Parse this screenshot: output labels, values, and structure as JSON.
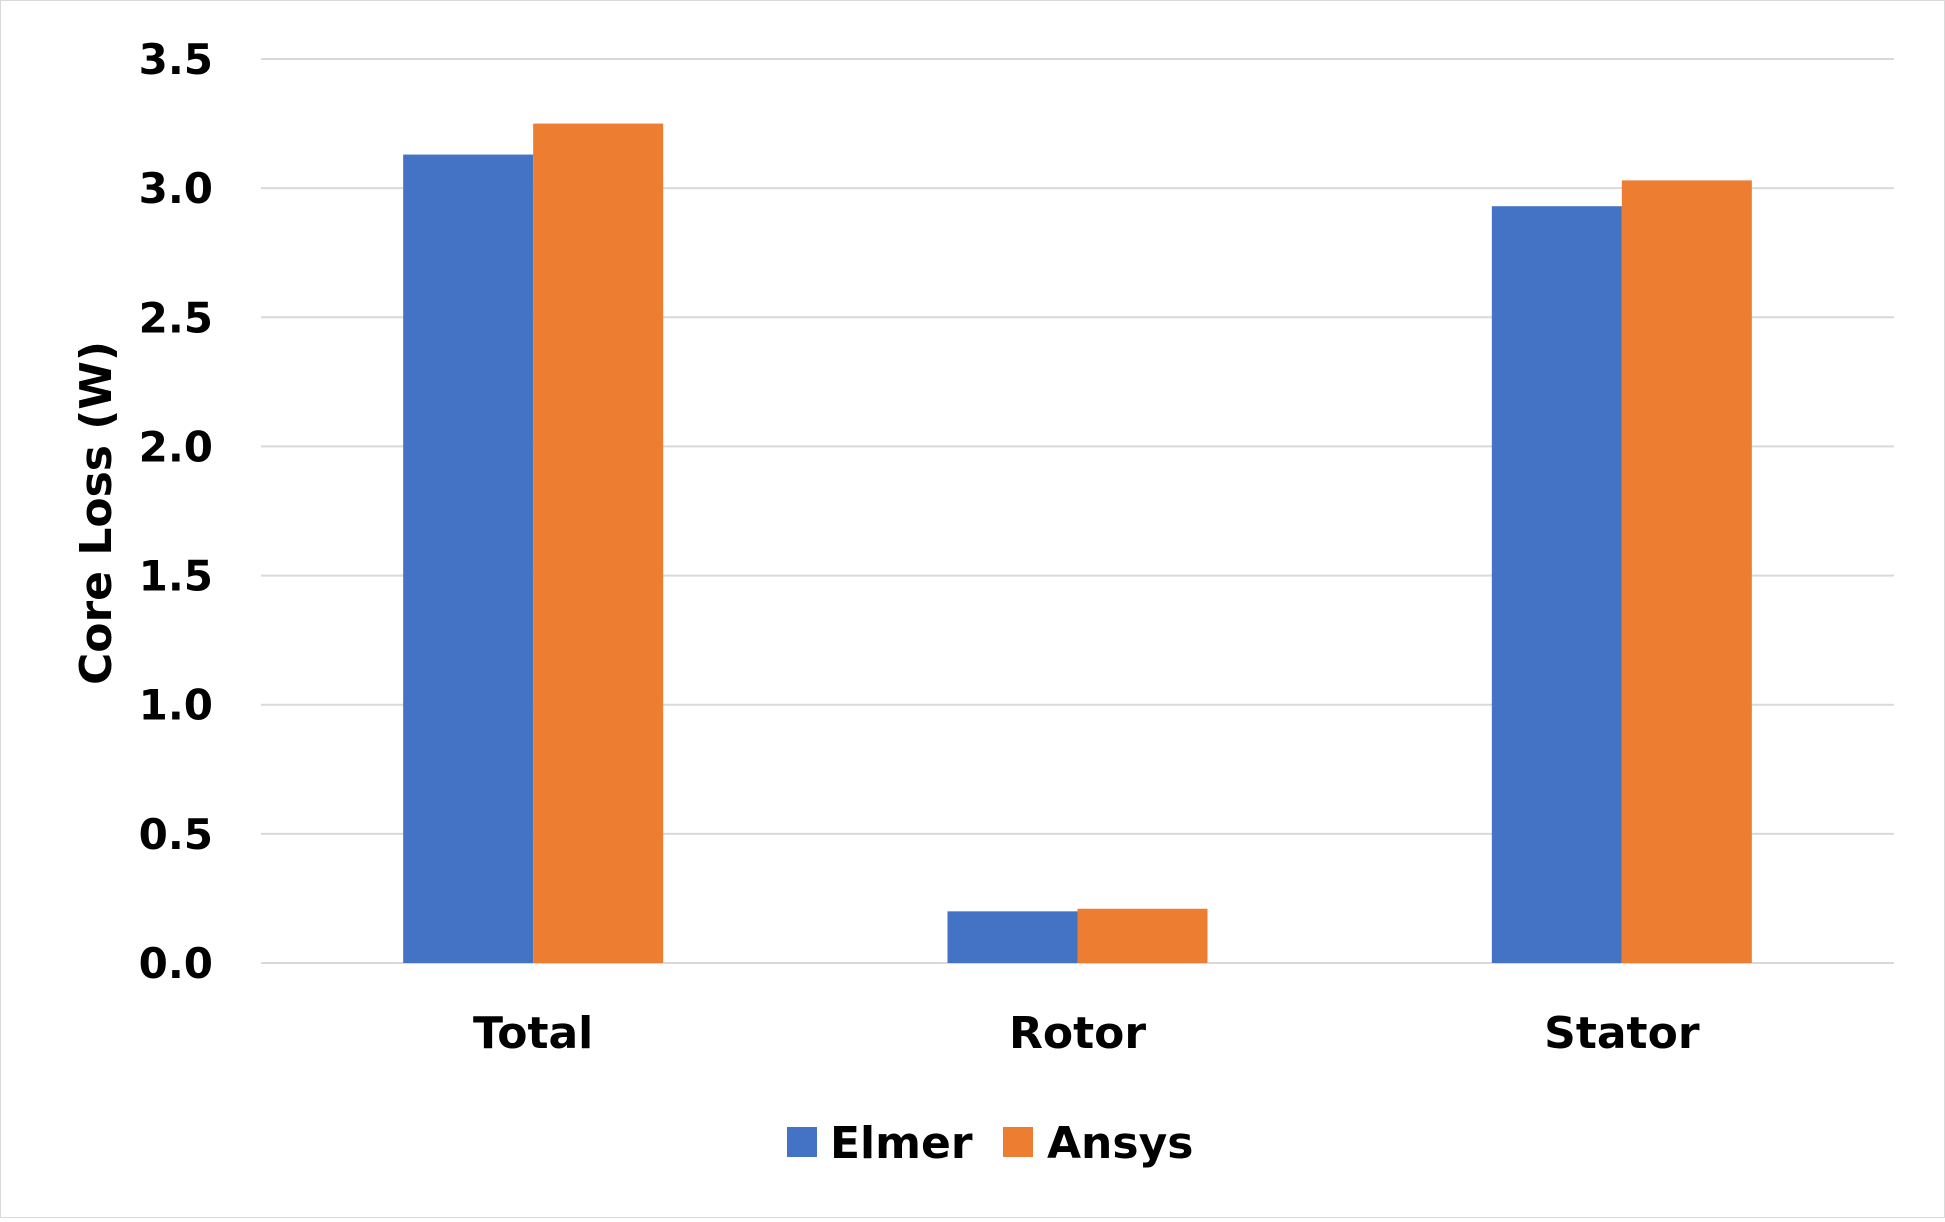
{
  "chart_data": {
    "type": "bar",
    "title": "",
    "xlabel": "",
    "ylabel": "Core Loss (W)",
    "ylim": [
      0,
      3.5
    ],
    "yticks": [
      "0.0",
      "0.5",
      "1.0",
      "1.5",
      "2.0",
      "2.5",
      "3.0",
      "3.5"
    ],
    "grid": true,
    "legend_position": "bottom",
    "categories": [
      "Total",
      "Rotor",
      "Stator"
    ],
    "series": [
      {
        "name": "Elmer",
        "color": "#4472c4",
        "values": [
          3.13,
          0.2,
          2.93
        ]
      },
      {
        "name": "Ansys",
        "color": "#ed7d31",
        "values": [
          3.25,
          0.21,
          3.03
        ]
      }
    ]
  }
}
